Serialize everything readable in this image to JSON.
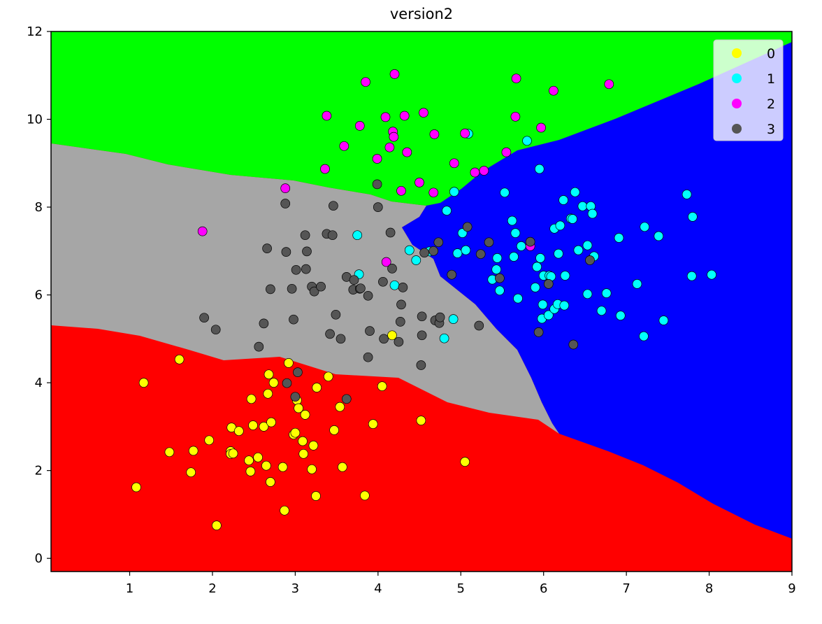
{
  "chart_data": {
    "type": "scatter",
    "title": "version2",
    "xlabel": "",
    "ylabel": "",
    "xlim": [
      0.05,
      9.0
    ],
    "ylim": [
      -0.3,
      12.0
    ],
    "xticks": [
      1,
      2,
      3,
      4,
      5,
      6,
      7,
      8,
      9
    ],
    "yticks": [
      0,
      2,
      4,
      6,
      8,
      10,
      12
    ],
    "legend_position": "top-right",
    "background_regions": [
      {
        "class": "0",
        "color": "#ff0000"
      },
      {
        "class": "1",
        "color": "#0000ff"
      },
      {
        "class": "2",
        "color": "#00ff00"
      },
      {
        "class": "3",
        "color": "#a6a6a6"
      }
    ],
    "series": [
      {
        "name": "0",
        "color": "#ffff00",
        "points": [
          [
            1.08,
            1.62
          ],
          [
            1.17,
            4.0
          ],
          [
            1.48,
            2.42
          ],
          [
            1.6,
            4.53
          ],
          [
            1.74,
            1.96
          ],
          [
            1.77,
            2.45
          ],
          [
            1.96,
            2.69
          ],
          [
            2.05,
            0.75
          ],
          [
            2.22,
            2.44
          ],
          [
            2.22,
            2.38
          ],
          [
            2.23,
            2.98
          ],
          [
            2.25,
            2.39
          ],
          [
            2.32,
            2.9
          ],
          [
            2.44,
            2.23
          ],
          [
            2.46,
            1.98
          ],
          [
            2.47,
            3.63
          ],
          [
            2.49,
            3.03
          ],
          [
            2.55,
            2.3
          ],
          [
            2.62,
            3.0
          ],
          [
            2.65,
            2.11
          ],
          [
            2.67,
            3.75
          ],
          [
            2.68,
            4.19
          ],
          [
            2.7,
            1.74
          ],
          [
            2.71,
            3.1
          ],
          [
            2.74,
            4.0
          ],
          [
            2.85,
            2.08
          ],
          [
            2.87,
            1.09
          ],
          [
            2.92,
            4.45
          ],
          [
            2.98,
            2.82
          ],
          [
            3.0,
            2.86
          ],
          [
            3.02,
            3.6
          ],
          [
            3.04,
            3.42
          ],
          [
            3.09,
            2.67
          ],
          [
            3.1,
            2.38
          ],
          [
            3.12,
            3.27
          ],
          [
            3.2,
            2.03
          ],
          [
            3.22,
            2.57
          ],
          [
            3.25,
            1.42
          ],
          [
            3.26,
            3.89
          ],
          [
            3.4,
            4.14
          ],
          [
            3.47,
            2.92
          ],
          [
            3.54,
            3.45
          ],
          [
            3.57,
            2.08
          ],
          [
            3.84,
            1.43
          ],
          [
            3.94,
            3.06
          ],
          [
            4.05,
            3.92
          ],
          [
            4.17,
            5.08
          ],
          [
            4.52,
            3.14
          ],
          [
            5.05,
            2.2
          ]
        ]
      },
      {
        "name": "1",
        "color": "#00ffff",
        "points": [
          [
            3.75,
            7.36
          ],
          [
            3.77,
            6.47
          ],
          [
            4.2,
            6.22
          ],
          [
            4.38,
            7.02
          ],
          [
            4.46,
            6.79
          ],
          [
            4.62,
            6.99
          ],
          [
            4.8,
            5.01
          ],
          [
            4.83,
            7.92
          ],
          [
            4.91,
            5.45
          ],
          [
            4.92,
            8.35
          ],
          [
            4.96,
            6.95
          ],
          [
            5.02,
            7.41
          ],
          [
            5.06,
            7.02
          ],
          [
            5.09,
            9.67
          ],
          [
            5.38,
            6.35
          ],
          [
            5.43,
            6.58
          ],
          [
            5.44,
            6.84
          ],
          [
            5.47,
            6.1
          ],
          [
            5.53,
            8.33
          ],
          [
            5.62,
            7.69
          ],
          [
            5.64,
            6.87
          ],
          [
            5.66,
            7.41
          ],
          [
            5.69,
            5.92
          ],
          [
            5.73,
            7.11
          ],
          [
            5.8,
            9.51
          ],
          [
            5.9,
            6.17
          ],
          [
            5.92,
            6.64
          ],
          [
            5.95,
            8.87
          ],
          [
            5.96,
            6.84
          ],
          [
            5.98,
            5.46
          ],
          [
            5.99,
            5.78
          ],
          [
            6.0,
            6.44
          ],
          [
            6.06,
            5.54
          ],
          [
            6.07,
            6.44
          ],
          [
            6.09,
            6.42
          ],
          [
            6.13,
            5.68
          ],
          [
            6.13,
            7.51
          ],
          [
            6.17,
            5.79
          ],
          [
            6.18,
            6.94
          ],
          [
            6.2,
            7.58
          ],
          [
            6.24,
            8.16
          ],
          [
            6.25,
            5.76
          ],
          [
            6.26,
            6.44
          ],
          [
            6.33,
            7.74
          ],
          [
            6.35,
            7.73
          ],
          [
            6.38,
            8.34
          ],
          [
            6.42,
            7.02
          ],
          [
            6.47,
            8.02
          ],
          [
            6.53,
            6.02
          ],
          [
            6.53,
            7.13
          ],
          [
            6.57,
            8.02
          ],
          [
            6.59,
            7.85
          ],
          [
            6.61,
            6.88
          ],
          [
            6.7,
            5.64
          ],
          [
            6.76,
            6.04
          ],
          [
            6.91,
            7.3
          ],
          [
            6.93,
            5.53
          ],
          [
            7.13,
            6.25
          ],
          [
            7.21,
            5.06
          ],
          [
            7.22,
            7.55
          ],
          [
            7.39,
            7.34
          ],
          [
            7.45,
            5.42
          ],
          [
            7.73,
            8.29
          ],
          [
            7.79,
            6.43
          ],
          [
            7.8,
            7.78
          ],
          [
            8.03,
            6.46
          ]
        ]
      },
      {
        "name": "2",
        "color": "#ff00ff",
        "points": [
          [
            1.88,
            7.45
          ],
          [
            2.88,
            8.43
          ],
          [
            3.36,
            8.87
          ],
          [
            3.38,
            10.08
          ],
          [
            3.59,
            9.39
          ],
          [
            3.78,
            9.85
          ],
          [
            3.85,
            10.85
          ],
          [
            3.99,
            9.1
          ],
          [
            4.09,
            10.05
          ],
          [
            4.1,
            6.75
          ],
          [
            4.14,
            9.36
          ],
          [
            4.18,
            9.72
          ],
          [
            4.19,
            9.6
          ],
          [
            4.2,
            11.03
          ],
          [
            4.28,
            8.37
          ],
          [
            4.32,
            10.08
          ],
          [
            4.35,
            9.25
          ],
          [
            4.5,
            8.56
          ],
          [
            4.55,
            10.15
          ],
          [
            4.67,
            8.33
          ],
          [
            4.68,
            9.66
          ],
          [
            4.92,
            9.0
          ],
          [
            5.05,
            9.68
          ],
          [
            5.17,
            8.79
          ],
          [
            5.28,
            8.83
          ],
          [
            5.55,
            9.25
          ],
          [
            5.66,
            10.06
          ],
          [
            5.67,
            10.93
          ],
          [
            5.84,
            7.11
          ],
          [
            5.97,
            9.81
          ],
          [
            6.12,
            10.65
          ],
          [
            6.79,
            10.8
          ]
        ]
      },
      {
        "name": "3",
        "color": "#555555",
        "points": [
          [
            1.9,
            5.48
          ],
          [
            2.04,
            5.21
          ],
          [
            2.56,
            4.82
          ],
          [
            2.62,
            5.35
          ],
          [
            2.66,
            7.06
          ],
          [
            2.7,
            6.13
          ],
          [
            2.88,
            8.08
          ],
          [
            2.89,
            6.98
          ],
          [
            2.9,
            3.99
          ],
          [
            2.96,
            6.14
          ],
          [
            2.98,
            5.44
          ],
          [
            3.0,
            3.68
          ],
          [
            3.01,
            6.57
          ],
          [
            3.03,
            4.24
          ],
          [
            3.12,
            7.36
          ],
          [
            3.13,
            6.59
          ],
          [
            3.14,
            6.99
          ],
          [
            3.2,
            6.19
          ],
          [
            3.23,
            6.08
          ],
          [
            3.31,
            6.19
          ],
          [
            3.38,
            7.39
          ],
          [
            3.42,
            5.11
          ],
          [
            3.45,
            7.36
          ],
          [
            3.46,
            8.03
          ],
          [
            3.49,
            5.55
          ],
          [
            3.55,
            5.0
          ],
          [
            3.62,
            3.63
          ],
          [
            3.62,
            6.41
          ],
          [
            3.7,
            6.12
          ],
          [
            3.71,
            6.34
          ],
          [
            3.78,
            6.14
          ],
          [
            3.79,
            6.15
          ],
          [
            3.88,
            5.98
          ],
          [
            3.88,
            4.58
          ],
          [
            3.9,
            5.18
          ],
          [
            3.99,
            8.52
          ],
          [
            4.0,
            8.0
          ],
          [
            4.06,
            6.3
          ],
          [
            4.07,
            5.0
          ],
          [
            4.15,
            7.42
          ],
          [
            4.17,
            6.6
          ],
          [
            4.25,
            4.93
          ],
          [
            4.27,
            5.39
          ],
          [
            4.28,
            5.78
          ],
          [
            4.3,
            6.17
          ],
          [
            4.52,
            4.4
          ],
          [
            4.53,
            5.51
          ],
          [
            4.53,
            5.08
          ],
          [
            4.56,
            6.96
          ],
          [
            4.67,
            7.0
          ],
          [
            4.69,
            5.42
          ],
          [
            4.73,
            7.2
          ],
          [
            4.74,
            5.36
          ],
          [
            4.75,
            5.49
          ],
          [
            4.89,
            6.46
          ],
          [
            5.08,
            7.55
          ],
          [
            5.22,
            5.3
          ],
          [
            5.24,
            6.93
          ],
          [
            5.34,
            7.2
          ],
          [
            5.47,
            6.38
          ],
          [
            5.84,
            7.21
          ],
          [
            5.94,
            5.15
          ],
          [
            6.06,
            6.25
          ],
          [
            6.36,
            4.87
          ],
          [
            6.56,
            6.79
          ]
        ]
      }
    ]
  }
}
